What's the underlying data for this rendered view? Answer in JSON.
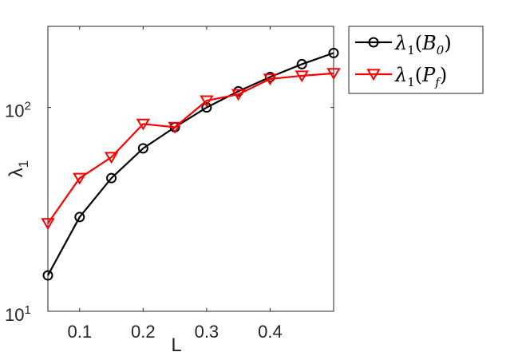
{
  "chart_data": {
    "type": "line",
    "xlabel": "L",
    "ylabel": "λ1",
    "x_scale": "linear",
    "y_scale": "log",
    "xlim": [
      0.05,
      0.5
    ],
    "ylim": [
      10,
      250
    ],
    "x_ticks": [
      0.1,
      0.2,
      0.3,
      0.4
    ],
    "x_tick_labels": [
      "0.1",
      "0.2",
      "0.3",
      "0.4"
    ],
    "y_ticks": [
      10,
      100
    ],
    "y_tick_labels": [
      {
        "base": "10",
        "exp": "1"
      },
      {
        "base": "10",
        "exp": "2"
      }
    ],
    "grid": false,
    "legend_position": "outside-top-right",
    "x": [
      0.05,
      0.1,
      0.15,
      0.2,
      0.25,
      0.3,
      0.35,
      0.4,
      0.45,
      0.5
    ],
    "series": [
      {
        "name": "λ1(B0)",
        "legend": {
          "sym": "λ",
          "sub": "1",
          "arg": "B",
          "arg_sub": "0"
        },
        "color": "#000000",
        "marker": "circle",
        "values": [
          15,
          29,
          45,
          63,
          80,
          100,
          120,
          141,
          163,
          185
        ]
      },
      {
        "name": "λ1(Pf)",
        "legend": {
          "sym": "λ",
          "sub": "1",
          "arg": "P",
          "arg_sub": "f"
        },
        "color": "#ff0000",
        "marker": "triangle-down",
        "values": [
          27,
          45,
          57,
          83,
          80,
          108,
          116,
          138,
          143,
          147
        ]
      }
    ]
  }
}
